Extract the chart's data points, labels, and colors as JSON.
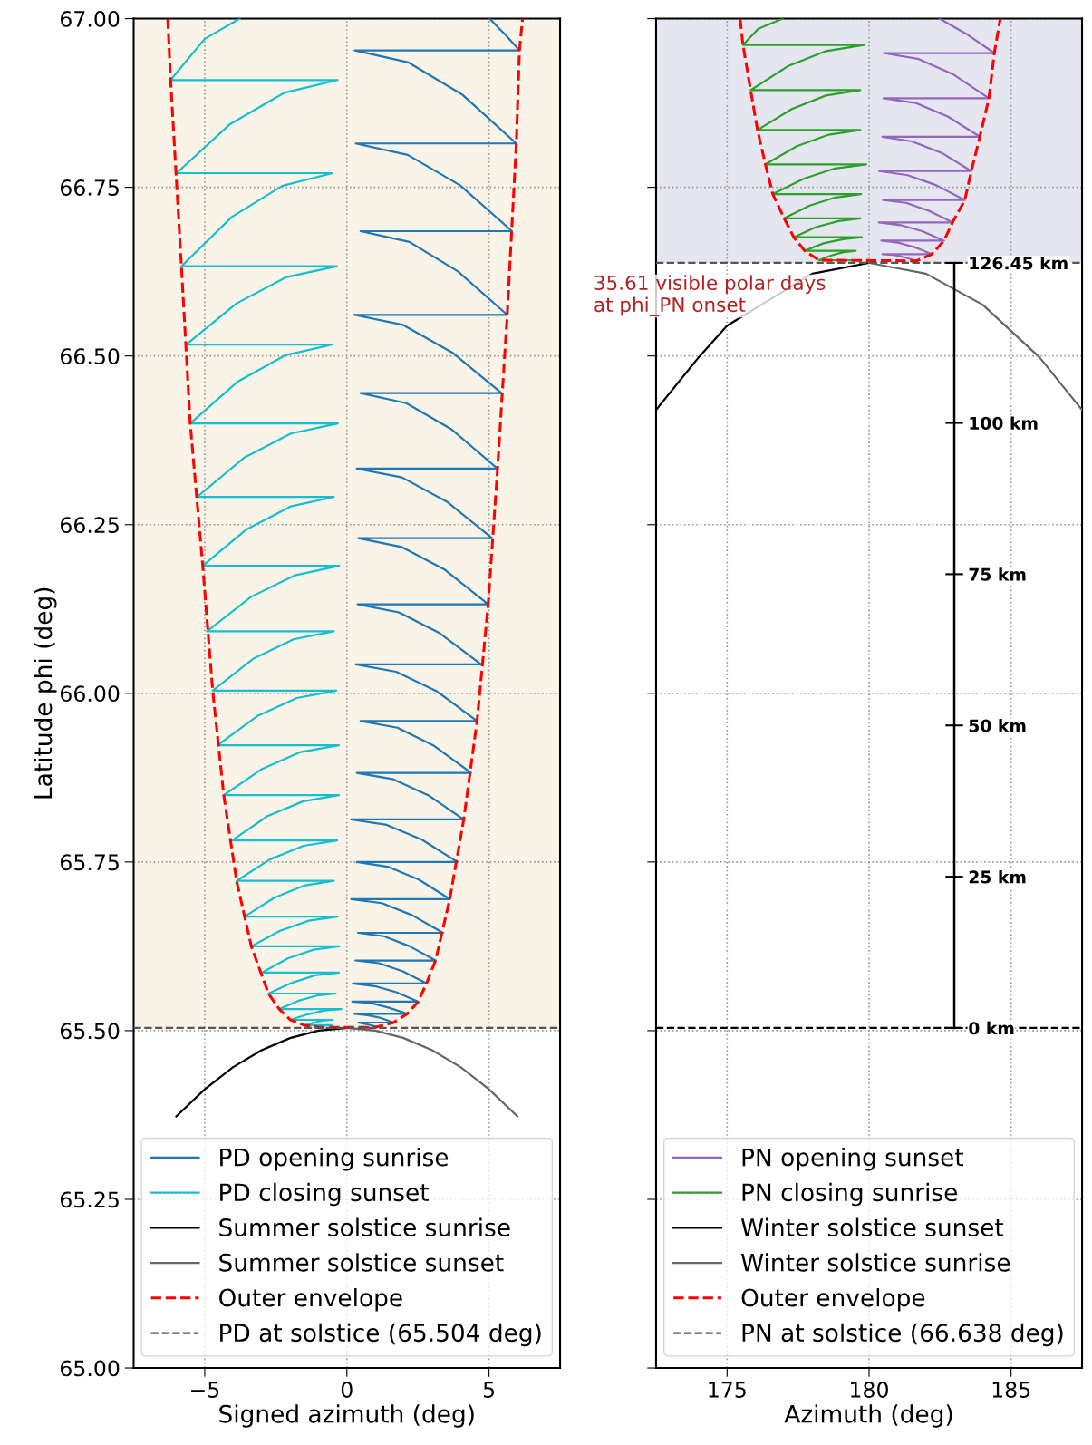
{
  "chart_data": [
    {
      "type": "line",
      "xlabel": "Signed azimuth (deg)",
      "ylabel": "Latitude phi (deg)",
      "xlim": [
        -7.5,
        7.5
      ],
      "ylim": [
        65,
        67
      ],
      "xticks": [
        {
          "value": -5,
          "label": "−5"
        },
        0,
        5
      ],
      "yticks": [
        {
          "value": 65,
          "label": "65.00"
        },
        65.25,
        {
          "value": 65.5,
          "label": "65.50"
        },
        65.75,
        {
          "value": 66,
          "label": "66.00"
        },
        66.25,
        {
          "value": 66.5,
          "label": "66.50"
        },
        66.75,
        {
          "value": 67,
          "label": "67.00"
        }
      ],
      "grid": true,
      "legend": "bottom",
      "bands": [
        {
          "axis": "y",
          "from": 65.504,
          "to": 67,
          "color": "#f9f3e8"
        }
      ],
      "series": [
        {
          "name": "PD opening sunrise",
          "color": "#1f77b4",
          "x": [
            5.02,
            5.6,
            6.07,
            0.28,
            2.17,
            4.07,
            5.96,
            0.31,
            2.14,
            3.98,
            5.81,
            0.48,
            2.2,
            3.92,
            5.64,
            0.25,
            1.98,
            3.71,
            5.44,
            0.48,
            2.09,
            3.69,
            5.3,
            0.35,
            1.94,
            3.52,
            5.11,
            0.4,
            1.92,
            3.45,
            4.97,
            0.38,
            1.83,
            3.27,
            4.72,
            0.31,
            1.73,
            3.16,
            4.58,
            0.48,
            1.78,
            3.07,
            4.37,
            0.35,
            1.6,
            2.86,
            4.11,
            0.15,
            1.4,
            2.64,
            3.89,
            0.35,
            1.44,
            2.53,
            3.62,
            0.15,
            1.23,
            2.3,
            3.38,
            0.39,
            1.3,
            2.21,
            3.12,
            0.3,
            1.13,
            1.97,
            2.8,
            0.21,
            0.98,
            1.74,
            2.51,
            0.19,
            0.84,
            1.48,
            2.13,
            0.27,
            0.73,
            1.18,
            1.64,
            0.4,
            0.75,
            1.05
          ],
          "values": [
            67.0,
            66.975,
            66.953,
            66.953,
            66.935,
            66.887,
            66.815,
            66.815,
            66.798,
            66.753,
            66.685,
            66.685,
            66.669,
            66.625,
            66.561,
            66.561,
            66.546,
            66.505,
            66.445,
            66.445,
            66.43,
            66.391,
            66.333,
            66.333,
            66.32,
            66.284,
            66.23,
            66.23,
            66.217,
            66.183,
            66.132,
            66.132,
            66.12,
            66.089,
            66.043,
            66.043,
            66.032,
            66.003,
            65.959,
            65.959,
            65.949,
            65.922,
            65.882,
            65.882,
            65.873,
            65.849,
            65.813,
            65.813,
            65.805,
            65.783,
            65.75,
            65.75,
            65.743,
            65.724,
            65.695,
            65.695,
            65.689,
            65.671,
            65.645,
            65.645,
            65.64,
            65.625,
            65.604,
            65.604,
            65.6,
            65.588,
            65.57,
            65.57,
            65.566,
            65.557,
            65.543,
            65.543,
            65.541,
            65.534,
            65.525,
            65.525,
            65.523,
            65.519,
            65.512,
            65.512,
            65.509,
            65.506
          ]
        },
        {
          "name": "PD closing sunset",
          "color": "#17becf",
          "x": [
            -3.77,
            -5.0,
            -6.2,
            -0.32,
            -2.21,
            -4.1,
            -5.99,
            -0.51,
            -2.28,
            -4.05,
            -5.82,
            -0.35,
            -2.12,
            -3.88,
            -5.65,
            -0.5,
            -2.17,
            -3.84,
            -5.51,
            -0.32,
            -1.97,
            -3.62,
            -5.27,
            -0.46,
            -1.98,
            -3.53,
            -5.07,
            -0.27,
            -1.82,
            -3.37,
            -4.92,
            -0.46,
            -1.88,
            -3.3,
            -4.72,
            -0.37,
            -1.76,
            -3.16,
            -4.55,
            -0.28,
            -1.63,
            -2.98,
            -4.33,
            -0.28,
            -1.53,
            -2.79,
            -4.04,
            -0.34,
            -1.52,
            -2.7,
            -3.88,
            -0.46,
            -1.51,
            -2.55,
            -3.6,
            -0.33,
            -1.34,
            -2.35,
            -3.36,
            -0.26,
            -1.17,
            -2.08,
            -2.99,
            -0.28,
            -1.11,
            -1.93,
            -2.76,
            -0.39,
            -1.05,
            -1.72,
            -2.38,
            -0.19,
            -0.79,
            -1.39,
            -1.99,
            -0.49,
            -0.82,
            -1.16,
            -1.49,
            -0.52
          ],
          "values": [
            67.0,
            66.97,
            66.909,
            66.909,
            66.89,
            66.844,
            66.771,
            66.771,
            66.752,
            66.706,
            66.633,
            66.633,
            66.617,
            66.578,
            66.517,
            66.517,
            66.501,
            66.462,
            66.4,
            66.4,
            66.385,
            66.349,
            66.291,
            66.291,
            66.277,
            66.243,
            66.189,
            66.189,
            66.175,
            66.143,
            66.092,
            66.092,
            66.08,
            66.051,
            66.004,
            66.004,
            65.993,
            65.966,
            65.923,
            65.923,
            65.913,
            65.888,
            65.849,
            65.849,
            65.84,
            65.818,
            65.782,
            65.782,
            65.774,
            65.754,
            65.722,
            65.722,
            65.715,
            65.697,
            65.669,
            65.669,
            65.663,
            65.648,
            65.625,
            65.625,
            65.62,
            65.607,
            65.586,
            65.586,
            65.582,
            65.571,
            65.555,
            65.555,
            65.552,
            65.544,
            65.532,
            65.532,
            65.53,
            65.524,
            65.516,
            65.516,
            65.515,
            65.512,
            65.508,
            65.508
          ]
        },
        {
          "name": "Summer solstice sunrise",
          "color": "#000000",
          "x": [
            -6.0,
            -5,
            -4,
            -3,
            -2,
            -1,
            0
          ],
          "values": [
            65.373,
            65.413,
            65.446,
            65.471,
            65.489,
            65.5,
            65.504
          ]
        },
        {
          "name": "Summer solstice sunset",
          "color": "#666666",
          "x": [
            0,
            1,
            2,
            3,
            4,
            5,
            6.0
          ],
          "values": [
            65.504,
            65.5,
            65.489,
            65.471,
            65.446,
            65.413,
            65.373
          ]
        },
        {
          "name": "Outer envelope",
          "color": "#ff0000",
          "line_style": "dashed",
          "x": [
            -6.3,
            -6.2,
            -5.82,
            -5.51,
            -5.07,
            -4.72,
            -4.33,
            -3.88,
            -3.36,
            -2.76,
            -2.38,
            -1.99,
            -1.49,
            -1.0,
            1.0,
            1.64,
            2.13,
            2.51,
            2.8,
            3.12,
            3.62,
            4.11,
            4.58,
            4.97,
            5.3,
            5.64,
            5.96,
            6.07,
            6.18
          ],
          "values": [
            67.0,
            66.909,
            66.633,
            66.4,
            66.189,
            66.004,
            65.849,
            65.722,
            65.625,
            65.555,
            65.532,
            65.516,
            65.508,
            65.505,
            65.505,
            65.512,
            65.525,
            65.543,
            65.57,
            65.604,
            65.695,
            65.813,
            65.959,
            66.132,
            66.333,
            66.561,
            66.815,
            66.953,
            67.0
          ]
        }
      ],
      "ref_lines": [
        {
          "axis": "y",
          "value": 65.504,
          "label": "PD at solstice (65.504 deg)",
          "color": "#555555",
          "line_style": "dashed"
        }
      ]
    },
    {
      "type": "line",
      "xlabel": "Azimuth (deg)",
      "xlim": [
        172.5,
        187.5
      ],
      "ylim": [
        65,
        67
      ],
      "xticks": [
        175,
        180,
        185
      ],
      "yticks": [
        {
          "value": 65,
          "label": null
        },
        {
          "value": 65.25,
          "label": null
        },
        {
          "value": 65.5,
          "label": null
        },
        {
          "value": 65.75,
          "label": null
        },
        {
          "value": 66,
          "label": null
        },
        {
          "value": 66.25,
          "label": null
        },
        {
          "value": 66.5,
          "label": null
        },
        {
          "value": 66.75,
          "label": null
        },
        {
          "value": 67,
          "label": null
        }
      ],
      "tick_labels": "x",
      "y2lim": [
        -56.2,
        166.82
      ],
      "y2ticks": [
        {
          "value": 0,
          "label": "0 km"
        },
        {
          "value": 25,
          "label": "25 km"
        },
        {
          "value": 50,
          "label": "50 km"
        },
        {
          "value": 75,
          "label": "75 km"
        },
        {
          "value": 100,
          "label": "100 km"
        },
        {
          "value": 126.45,
          "label": "126.45 km"
        }
      ],
      "grid": true,
      "legend": "bottom",
      "bands": [
        {
          "axis": "y",
          "from": 66.638,
          "to": 67,
          "color": "#e6e6f0"
        }
      ],
      "annotations": [
        "35.61 visible polar days\nat phi_PN onset"
      ],
      "series": [
        {
          "name": "PN opening sunset",
          "color": "#9467bd",
          "x": [
            182.48,
            183.4,
            184.41,
            180.51,
            181.75,
            182.98,
            184.22,
            180.51,
            181.64,
            182.77,
            183.9,
            180.47,
            181.51,
            182.56,
            183.6,
            180.36,
            181.36,
            182.37,
            183.37,
            180.49,
            181.31,
            182.12,
            182.94,
            180.34,
            181.11,
            181.87,
            182.64,
            180.43,
            181.02,
            181.62,
            182.21,
            180.47,
            180.87,
            181.27,
            181.67
          ],
          "values": [
            67.0,
            66.978,
            66.949,
            66.949,
            66.94,
            66.917,
            66.882,
            66.882,
            66.875,
            66.855,
            66.825,
            66.825,
            66.818,
            66.801,
            66.774,
            66.774,
            66.768,
            66.753,
            66.731,
            66.731,
            66.727,
            66.715,
            66.698,
            66.698,
            66.694,
            66.685,
            66.671,
            66.671,
            66.668,
            66.661,
            66.651,
            66.651,
            66.65,
            66.646,
            66.641
          ]
        },
        {
          "name": "PN closing sunrise",
          "color": "#2ca02c",
          "x": [
            176.96,
            176.1,
            175.56,
            179.82,
            178.49,
            177.16,
            175.83,
            179.69,
            178.48,
            177.28,
            176.07,
            179.69,
            178.58,
            177.46,
            176.35,
            179.9,
            178.8,
            177.71,
            176.61,
            179.72,
            178.82,
            177.91,
            177.01,
            179.7,
            178.92,
            178.13,
            177.35,
            179.75,
            179.08,
            178.4,
            177.73,
            179.53,
            179.1,
            178.67,
            178.24,
            179.72
          ],
          "values": [
            67.0,
            66.985,
            66.961,
            66.961,
            66.952,
            66.93,
            66.894,
            66.894,
            66.886,
            66.866,
            66.835,
            66.835,
            66.828,
            66.811,
            66.784,
            66.784,
            66.778,
            66.763,
            66.74,
            66.74,
            66.735,
            66.723,
            66.704,
            66.704,
            66.7,
            66.691,
            66.676,
            66.676,
            66.673,
            66.667,
            66.656,
            66.656,
            66.654,
            66.649,
            66.642,
            66.642
          ]
        },
        {
          "name": "Winter solstice sunset",
          "color": "#000000",
          "x": [
            172.5,
            174,
            175,
            178,
            180
          ],
          "values": [
            66.42,
            66.498,
            66.545,
            66.622,
            66.638
          ]
        },
        {
          "name": "Winter solstice sunrise",
          "color": "#666666",
          "x": [
            180,
            182,
            184,
            186,
            187.5
          ],
          "values": [
            66.638,
            66.622,
            66.576,
            66.498,
            66.42
          ]
        },
        {
          "name": "Outer envelope",
          "color": "#ff0000",
          "line_style": "dashed",
          "x": [
            175.46,
            175.56,
            175.83,
            176.07,
            176.35,
            176.61,
            177.01,
            177.35,
            177.73,
            178.24,
            181.67,
            182.21,
            182.64,
            182.94,
            183.37,
            183.6,
            183.9,
            184.22,
            184.41,
            184.62
          ],
          "values": [
            67.0,
            66.961,
            66.894,
            66.835,
            66.784,
            66.74,
            66.704,
            66.676,
            66.656,
            66.642,
            66.641,
            66.651,
            66.671,
            66.698,
            66.731,
            66.774,
            66.825,
            66.882,
            66.949,
            67.0
          ]
        }
      ],
      "ref_lines": [
        {
          "axis": "y",
          "value": 65.504,
          "color": "#000000",
          "line_style": "dashed"
        },
        {
          "axis": "y",
          "value": 66.638,
          "label": "PN at solstice (66.638 deg)",
          "color": "#555555",
          "line_style": "dashed"
        }
      ]
    }
  ]
}
